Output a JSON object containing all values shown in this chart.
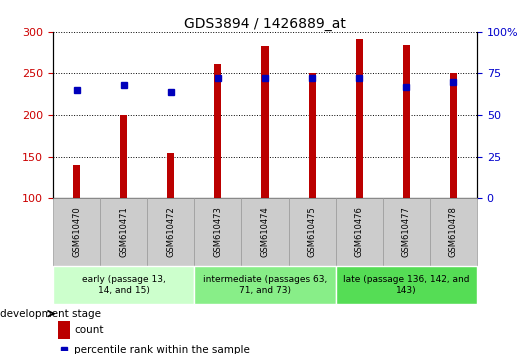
{
  "title": "GDS3894 / 1426889_at",
  "samples": [
    "GSM610470",
    "GSM610471",
    "GSM610472",
    "GSM610473",
    "GSM610474",
    "GSM610475",
    "GSM610476",
    "GSM610477",
    "GSM610478"
  ],
  "counts": [
    140,
    200,
    154,
    261,
    283,
    251,
    291,
    284,
    251
  ],
  "percentile_ranks": [
    65,
    68,
    64,
    72,
    72,
    72,
    72,
    67,
    70
  ],
  "ylim_left": [
    100,
    300
  ],
  "ylim_right": [
    0,
    100
  ],
  "yticks_left": [
    100,
    150,
    200,
    250,
    300
  ],
  "yticks_right": [
    0,
    25,
    50,
    75,
    100
  ],
  "groups": [
    {
      "label": "early (passage 13,\n14, and 15)",
      "n": 3,
      "color": "#ccffcc"
    },
    {
      "label": "intermediate (passages 63,\n71, and 73)",
      "n": 3,
      "color": "#88ee88"
    },
    {
      "label": "late (passage 136, 142, and\n143)",
      "n": 3,
      "color": "#55dd55"
    }
  ],
  "bar_color": "#bb0000",
  "dot_color": "#0000bb",
  "tick_bg_color": "#cccccc",
  "tick_border_color": "#999999"
}
